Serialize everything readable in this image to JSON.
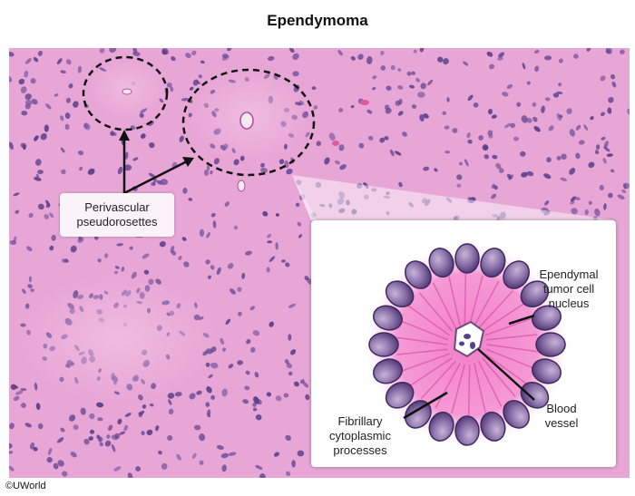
{
  "title": "Ependymoma",
  "callouts": {
    "pseudorosettes": "Perivascular\npseudorosettes",
    "nucleus": "Ependymal\ntumor cell\nnucleus",
    "fibrillary": "Fibrillary\ncytoplasmic\nprocesses",
    "vessel": "Blood\nvessel"
  },
  "copyright": "©UWorld",
  "colors": {
    "tissue": "#e8a6d6",
    "nuclei": "#5a3f8a",
    "inset_pink": "#f27fc8",
    "nucleus_fill": "#8a6fa8"
  }
}
